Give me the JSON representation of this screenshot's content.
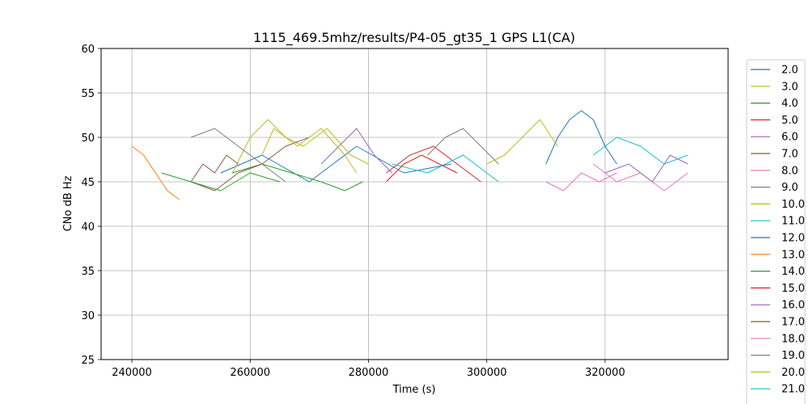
{
  "chart_data": {
    "type": "line",
    "title": "1115_469.5mhz/results/P4-05_gt35_1 GPS L1(CA)",
    "xlabel": "Time (s)",
    "ylabel": "CNo dB Hz",
    "xlim": [
      234800,
      340800
    ],
    "ylim": [
      25,
      60
    ],
    "xticks": [
      "240000",
      "260000",
      "280000",
      "300000",
      "320000"
    ],
    "yticks": [
      "25",
      "30",
      "35",
      "40",
      "45",
      "50",
      "55",
      "60"
    ],
    "grid": true,
    "legend_position": "outside-right",
    "series": [
      {
        "name": "2.0",
        "color": "#1f77b4",
        "x": [
          255000,
          262000,
          270000,
          278000,
          286000,
          294000
        ],
        "y": [
          46,
          48,
          45,
          49,
          46,
          47
        ]
      },
      {
        "name": "3.0",
        "color": "#bcbd22",
        "x": [
          257000,
          260000,
          263000,
          266000,
          269000,
          273000,
          277000,
          280000
        ],
        "y": [
          46,
          50,
          52,
          50,
          49,
          51,
          48,
          47
        ]
      },
      {
        "name": "4.0",
        "color": "#2ca02c",
        "x": [
          257000,
          262000,
          267000,
          272000,
          276000,
          279000
        ],
        "y": [
          46,
          47,
          46,
          45,
          44,
          45
        ]
      },
      {
        "name": "5.0",
        "color": "#d62728",
        "x": [
          283000,
          287000,
          291000,
          295000,
          299000
        ],
        "y": [
          46,
          48,
          49,
          47,
          45
        ]
      },
      {
        "name": "6.0",
        "color": "#9467bd",
        "x": [
          272000,
          275000,
          278000,
          281000,
          284000
        ],
        "y": [
          47,
          49,
          51,
          48,
          46
        ]
      },
      {
        "name": "7.0",
        "color": "#8c564b",
        "x": [
          250000,
          254000,
          258000,
          262000,
          266000,
          270000
        ],
        "y": [
          45,
          44,
          46,
          47,
          49,
          50
        ]
      },
      {
        "name": "8.0",
        "color": "#e377c2",
        "x": [
          318000,
          322000,
          326000,
          330000,
          334000
        ],
        "y": [
          47,
          45,
          46,
          44,
          46
        ]
      },
      {
        "name": "9.0",
        "color": "#7f7f7f",
        "x": [
          250000,
          254000,
          258000,
          262000,
          266000
        ],
        "y": [
          50,
          51,
          49,
          47,
          45
        ]
      },
      {
        "name": "10.0",
        "color": "#bcbd22",
        "x": [
          262000,
          264000,
          268000,
          272000,
          276000,
          278000
        ],
        "y": [
          48,
          51,
          49,
          51,
          48,
          46
        ]
      },
      {
        "name": "11.0",
        "color": "#17becf",
        "x": [
          284000,
          290000,
          296000,
          302000
        ],
        "y": [
          47,
          46,
          48,
          45
        ]
      },
      {
        "name": "12.0",
        "color": "#1f77b4",
        "x": [
          310000,
          312000,
          314000,
          316000,
          318000,
          320000,
          322000
        ],
        "y": [
          47,
          50,
          52,
          53,
          52,
          49,
          47
        ]
      },
      {
        "name": "13.0",
        "color": "#ff7f0e",
        "x": [
          240000,
          242000,
          244000,
          246000,
          248000
        ],
        "y": [
          49,
          48,
          46,
          44,
          43
        ]
      },
      {
        "name": "14.0",
        "color": "#2ca02c",
        "x": [
          245000,
          250000,
          255000,
          260000,
          265000
        ],
        "y": [
          46,
          45,
          44,
          46,
          45
        ]
      },
      {
        "name": "15.0",
        "color": "#d62728",
        "x": [
          283000,
          286000,
          289000,
          292000,
          295000
        ],
        "y": [
          45,
          47,
          48,
          47,
          46
        ]
      },
      {
        "name": "16.0",
        "color": "#9467bd",
        "x": [
          320000,
          324000,
          328000,
          331000,
          334000
        ],
        "y": [
          46,
          47,
          45,
          48,
          47
        ]
      },
      {
        "name": "17.0",
        "color": "#8c564b",
        "x": [
          250000,
          252000,
          254000,
          256000,
          258000
        ],
        "y": [
          45,
          47,
          46,
          48,
          47
        ]
      },
      {
        "name": "18.0",
        "color": "#e377c2",
        "x": [
          310000,
          313000,
          316000,
          319000,
          322000
        ],
        "y": [
          45,
          44,
          46,
          45,
          46
        ]
      },
      {
        "name": "19.0",
        "color": "#7f7f7f",
        "x": [
          290000,
          293000,
          296000,
          299000,
          302000
        ],
        "y": [
          48,
          50,
          51,
          49,
          47
        ]
      },
      {
        "name": "20.0",
        "color": "#bcbd22",
        "x": [
          300000,
          303000,
          306000,
          309000,
          312000
        ],
        "y": [
          47,
          48,
          50,
          52,
          49
        ]
      },
      {
        "name": "21.0",
        "color": "#17becf",
        "x": [
          318000,
          322000,
          326000,
          330000,
          334000
        ],
        "y": [
          48,
          50,
          49,
          47,
          48
        ]
      }
    ]
  }
}
